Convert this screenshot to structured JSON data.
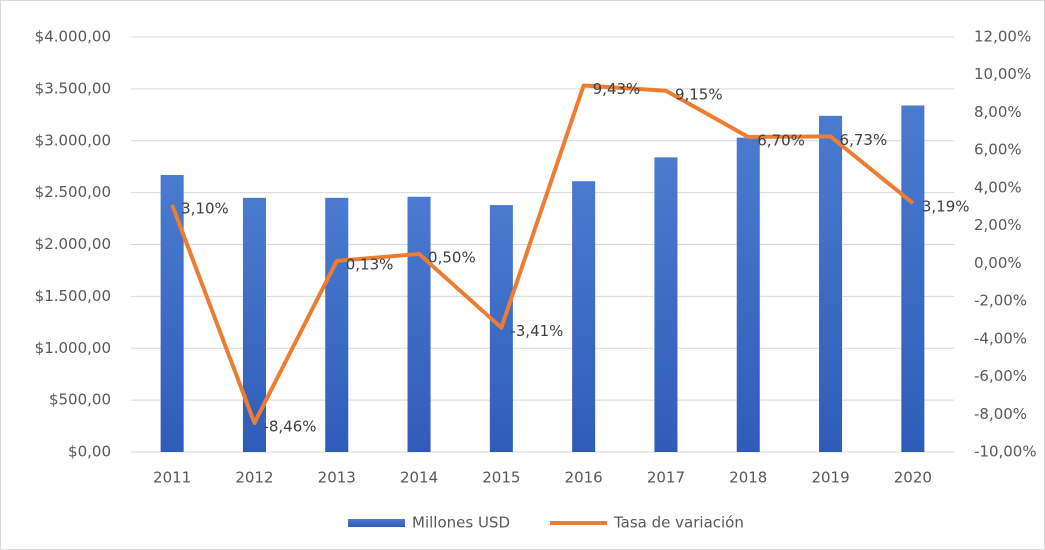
{
  "chart_data": {
    "type": "combo",
    "categories": [
      "2011",
      "2012",
      "2013",
      "2014",
      "2015",
      "2016",
      "2017",
      "2018",
      "2019",
      "2020"
    ],
    "series": [
      {
        "name": "Millones USD",
        "type": "bar",
        "color": "#4472c4",
        "values": [
          2670,
          2450,
          2450,
          2460,
          2380,
          2610,
          2840,
          3030,
          3240,
          3340
        ]
      },
      {
        "name": "Tasa de variación",
        "type": "line",
        "axis": "y2",
        "color": "#ed7d31",
        "values": [
          3.1,
          -8.46,
          0.13,
          0.5,
          -3.41,
          9.43,
          9.15,
          6.7,
          6.73,
          3.19
        ],
        "value_labels": [
          "3,10%",
          "-8,46%",
          "0,13%",
          "0,50%",
          "-3,41%",
          "9,43%",
          "9,15%",
          "6,70%",
          "6,73%",
          "3,19%"
        ]
      }
    ],
    "ylim": [
      0,
      4000
    ],
    "yticks": [
      {
        "value": 0,
        "label": "$0,00"
      },
      {
        "value": 500,
        "label": "$500,00"
      },
      {
        "value": 1000,
        "label": "$1.000,00"
      },
      {
        "value": 1500,
        "label": "$1.500,00"
      },
      {
        "value": 2000,
        "label": "$2.000,00"
      },
      {
        "value": 2500,
        "label": "$2.500,00"
      },
      {
        "value": 3000,
        "label": "$3.000,00"
      },
      {
        "value": 3500,
        "label": "$3.500,00"
      },
      {
        "value": 4000,
        "label": "$4.000,00"
      }
    ],
    "y2lim": [
      -10,
      12
    ],
    "y2ticks": [
      {
        "value": -10,
        "label": "-10,00%"
      },
      {
        "value": -8,
        "label": "-8,00%"
      },
      {
        "value": -6,
        "label": "-6,00%"
      },
      {
        "value": -4,
        "label": "-4,00%"
      },
      {
        "value": -2,
        "label": "-2,00%"
      },
      {
        "value": 0,
        "label": "0,00%"
      },
      {
        "value": 2,
        "label": "2,00%"
      },
      {
        "value": 4,
        "label": "4,00%"
      },
      {
        "value": 6,
        "label": "6,00%"
      },
      {
        "value": 8,
        "label": "8,00%"
      },
      {
        "value": 10,
        "label": "10,00%"
      },
      {
        "value": 12,
        "label": "12,00%"
      }
    ],
    "grid": true,
    "legend": "bottom"
  }
}
